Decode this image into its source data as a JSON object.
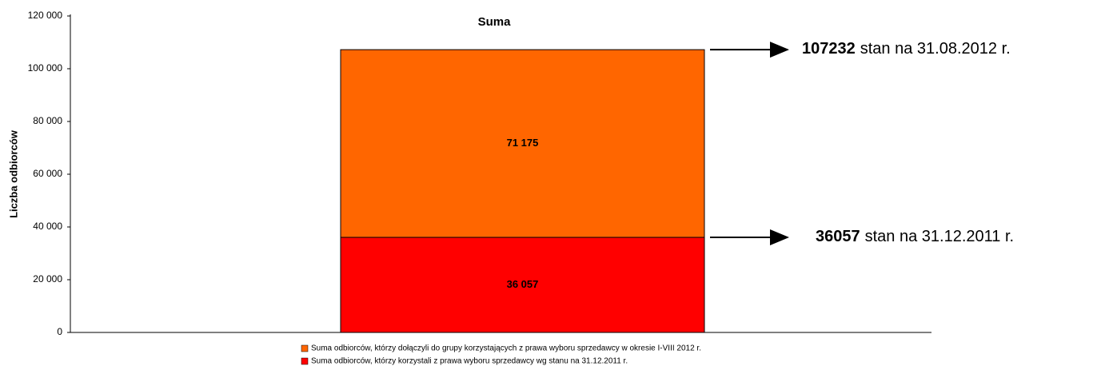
{
  "chart_data": {
    "type": "stacked_bar",
    "title": "Suma",
    "y_label": "Liczba odbiorców",
    "series": [
      {
        "name": "Suma odbiorców, którzy korzystali z prawa wyboru sprzedawcy wg stanu na 31.12.2011 r.",
        "color": "#ff0000",
        "values": [
          36057
        ],
        "value_labels": [
          "36 057"
        ]
      },
      {
        "name": "Suma odbiorców, którzy dołączyli do grupy korzystających z  prawa wyboru sprzedawcy w  okresie I-VIII  2012 r.",
        "color": "#ff6600",
        "values": [
          71175
        ],
        "value_labels": [
          "71 175"
        ]
      }
    ],
    "ylim": [
      0,
      120000
    ],
    "yticks": [
      0,
      {
        "value": 20000,
        "label": "20 000"
      },
      {
        "value": 40000,
        "label": "40 000"
      },
      {
        "value": 60000,
        "label": "60 000"
      },
      {
        "value": 80000,
        "label": "80 000"
      },
      {
        "value": 100000,
        "label": "100 000"
      },
      {
        "value": 120000,
        "label": "120 000"
      }
    ],
    "annotations": [
      {
        "value": 107232,
        "label": "107232",
        "text": "stan na 31.08.2012 r."
      },
      {
        "value": 36057,
        "label": "36057",
        "text": "stan na 31.12.2011 r."
      }
    ]
  }
}
